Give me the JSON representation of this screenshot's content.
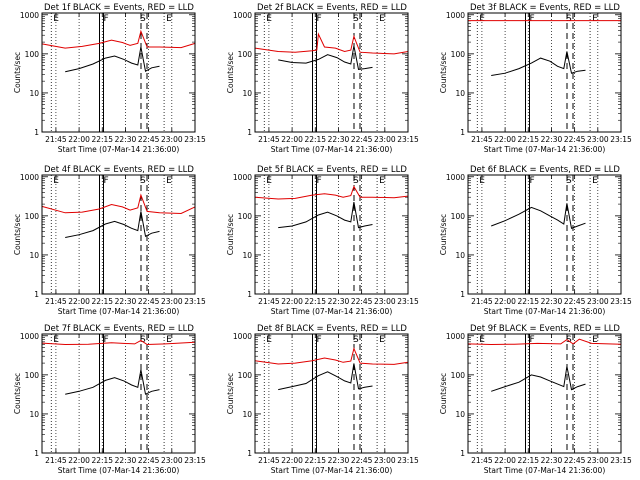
{
  "colors": {
    "events": "#000000",
    "lld": "#e00000",
    "axes": "#000000"
  },
  "shared": {
    "ylabel": "Counts/sec",
    "xlabel": "Start Time (07-Mar-14 21:36:00)",
    "xtick_labels": [
      "21:45",
      "22:00",
      "22:15",
      "22:30",
      "22:45",
      "23:00",
      "23:15"
    ],
    "ytick_labels": [
      "1",
      "10",
      "100",
      "1000"
    ],
    "markers": [
      {
        "letter": "E",
        "time_min": 6
      },
      {
        "letter": "F",
        "time_min": 38.5
      },
      {
        "letter": "S",
        "time_min": 66
      },
      {
        "letter": "E",
        "time_min": 79
      }
    ]
  },
  "chart_data": [
    {
      "type": "line",
      "title": "Det 1f BLACK = Events, RED = LLD",
      "xlim_min": [
        0,
        99
      ],
      "ylim": [
        1,
        1100
      ],
      "yscale": "log",
      "grid": "vertical dotted",
      "series": [
        {
          "name": "Events",
          "color": "#000000",
          "x": [
            15,
            24,
            33,
            41,
            47,
            53,
            58,
            62,
            64,
            67,
            71,
            76
          ],
          "y": [
            35,
            42,
            55,
            78,
            88,
            72,
            58,
            52,
            150,
            36,
            44,
            48
          ]
        },
        {
          "name": "LLD",
          "color": "#e00000",
          "x": [
            0,
            15,
            26,
            37,
            45,
            52,
            57,
            62,
            64,
            68,
            76,
            90,
            99
          ],
          "y": [
            180,
            140,
            155,
            185,
            225,
            195,
            165,
            185,
            380,
            150,
            150,
            145,
            185
          ]
        }
      ]
    },
    {
      "type": "line",
      "title": "Det 2f BLACK = Events, RED = LLD",
      "xlim_min": [
        0,
        99
      ],
      "ylim": [
        1,
        1100
      ],
      "yscale": "log",
      "grid": "vertical dotted",
      "series": [
        {
          "name": "Events",
          "color": "#000000",
          "x": [
            15,
            24,
            33,
            41,
            47,
            53,
            58,
            62,
            64,
            67,
            71,
            76
          ],
          "y": [
            70,
            60,
            58,
            72,
            95,
            80,
            62,
            55,
            160,
            40,
            42,
            45
          ]
        },
        {
          "name": "LLD",
          "color": "#e00000",
          "x": [
            0,
            15,
            26,
            37,
            40,
            41,
            45,
            52,
            58,
            62,
            64,
            68,
            76,
            90,
            99
          ],
          "y": [
            140,
            115,
            110,
            120,
            125,
            320,
            150,
            140,
            115,
            125,
            280,
            110,
            105,
            100,
            115
          ]
        }
      ]
    },
    {
      "type": "line",
      "title": "Det 3f BLACK = Events, RED = LLD",
      "xlim_min": [
        0,
        99
      ],
      "ylim": [
        1,
        1100
      ],
      "yscale": "log",
      "grid": "vertical dotted",
      "series": [
        {
          "name": "Events",
          "color": "#000000",
          "x": [
            15,
            24,
            33,
            41,
            47,
            53,
            58,
            62,
            64,
            67,
            71,
            76
          ],
          "y": [
            28,
            32,
            42,
            58,
            78,
            65,
            48,
            42,
            115,
            32,
            36,
            38
          ]
        },
        {
          "name": "LLD",
          "color": "#e00000",
          "x": [
            0,
            99
          ],
          "y": [
            710,
            710
          ]
        }
      ]
    },
    {
      "type": "line",
      "title": "Det 4f BLACK = Events, RED = LLD",
      "xlim_min": [
        0,
        99
      ],
      "ylim": [
        1,
        1100
      ],
      "yscale": "log",
      "grid": "vertical dotted",
      "series": [
        {
          "name": "Events",
          "color": "#000000",
          "x": [
            15,
            24,
            33,
            41,
            47,
            53,
            58,
            62,
            64,
            67,
            71,
            76
          ],
          "y": [
            28,
            33,
            42,
            62,
            72,
            60,
            48,
            42,
            130,
            30,
            36,
            40
          ]
        },
        {
          "name": "LLD",
          "color": "#e00000",
          "x": [
            0,
            15,
            26,
            37,
            45,
            52,
            57,
            62,
            64,
            68,
            76,
            90,
            99
          ],
          "y": [
            175,
            120,
            125,
            150,
            195,
            170,
            140,
            160,
            340,
            130,
            120,
            115,
            170
          ]
        }
      ]
    },
    {
      "type": "line",
      "title": "Det 5f BLACK = Events, RED = LLD",
      "xlim_min": [
        0,
        99
      ],
      "ylim": [
        1,
        1100
      ],
      "yscale": "log",
      "grid": "vertical dotted",
      "series": [
        {
          "name": "Events",
          "color": "#000000",
          "x": [
            15,
            24,
            33,
            41,
            47,
            53,
            58,
            62,
            64,
            67,
            71,
            76
          ],
          "y": [
            50,
            55,
            70,
            105,
            125,
            100,
            78,
            70,
            225,
            50,
            55,
            60
          ]
        },
        {
          "name": "LLD",
          "color": "#e00000",
          "x": [
            0,
            15,
            26,
            37,
            45,
            52,
            57,
            62,
            64,
            68,
            76,
            90,
            99
          ],
          "y": [
            300,
            270,
            280,
            340,
            370,
            340,
            300,
            330,
            560,
            300,
            300,
            290,
            320
          ]
        }
      ]
    },
    {
      "type": "line",
      "title": "Det 6f BLACK = Events, RED = LLD",
      "xlim_min": [
        0,
        99
      ],
      "ylim": [
        1,
        1100
      ],
      "yscale": "log",
      "grid": "vertical dotted",
      "series": [
        {
          "name": "Events",
          "color": "#000000",
          "x": [
            15,
            24,
            33,
            41,
            47,
            53,
            58,
            62,
            64,
            67,
            71,
            76
          ],
          "y": [
            55,
            75,
            110,
            165,
            135,
            100,
            78,
            62,
            210,
            48,
            55,
            65
          ]
        },
        {
          "name": "LLD",
          "color": "#e00000",
          "x": [],
          "y": []
        }
      ]
    },
    {
      "type": "line",
      "title": "Det 7f BLACK = Events, RED = LLD",
      "xlim_min": [
        0,
        99
      ],
      "ylim": [
        1,
        1100
      ],
      "yscale": "log",
      "grid": "vertical dotted",
      "series": [
        {
          "name": "Events",
          "color": "#000000",
          "x": [
            15,
            24,
            33,
            41,
            47,
            53,
            58,
            62,
            64,
            67,
            71,
            76
          ],
          "y": [
            32,
            38,
            48,
            72,
            85,
            70,
            55,
            48,
            135,
            32,
            38,
            42
          ]
        },
        {
          "name": "LLD",
          "color": "#e00000",
          "x": [
            0,
            15,
            30,
            45,
            60,
            64,
            68,
            80,
            99
          ],
          "y": [
            650,
            600,
            610,
            660,
            620,
            760,
            600,
            620,
            680
          ]
        }
      ]
    },
    {
      "type": "line",
      "title": "Det 8f BLACK = Events, RED = LLD",
      "xlim_min": [
        0,
        99
      ],
      "ylim": [
        1,
        1100
      ],
      "yscale": "log",
      "grid": "vertical dotted",
      "series": [
        {
          "name": "Events",
          "color": "#000000",
          "x": [
            15,
            24,
            33,
            41,
            47,
            53,
            58,
            62,
            64,
            67,
            71,
            76
          ],
          "y": [
            42,
            50,
            60,
            95,
            120,
            90,
            70,
            62,
            195,
            44,
            48,
            52
          ]
        },
        {
          "name": "LLD",
          "color": "#e00000",
          "x": [
            0,
            15,
            26,
            37,
            45,
            52,
            57,
            62,
            64,
            68,
            76,
            90,
            99
          ],
          "y": [
            230,
            190,
            200,
            230,
            270,
            240,
            210,
            225,
            470,
            200,
            190,
            185,
            210
          ]
        }
      ]
    },
    {
      "type": "line",
      "title": "Det 9f BLACK = Events, RED = LLD",
      "xlim_min": [
        0,
        99
      ],
      "ylim": [
        1,
        1100
      ],
      "yscale": "log",
      "grid": "vertical dotted",
      "series": [
        {
          "name": "Events",
          "color": "#000000",
          "x": [
            15,
            24,
            33,
            41,
            47,
            53,
            58,
            62,
            64,
            67,
            71,
            76
          ],
          "y": [
            38,
            50,
            65,
            100,
            88,
            70,
            58,
            50,
            165,
            42,
            50,
            58
          ]
        },
        {
          "name": "LLD",
          "color": "#e00000",
          "x": [
            0,
            15,
            30,
            45,
            60,
            64,
            68,
            72,
            80,
            99
          ],
          "y": [
            620,
            600,
            610,
            640,
            620,
            800,
            620,
            820,
            640,
            610
          ]
        }
      ]
    }
  ]
}
